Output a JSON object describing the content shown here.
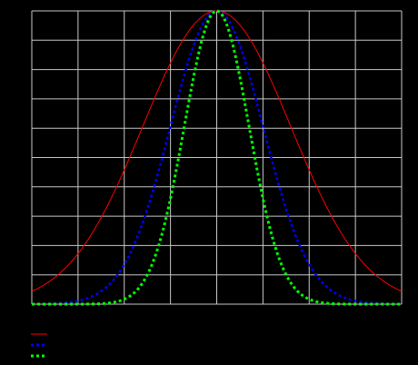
{
  "chart_data": {
    "type": "line",
    "title": "",
    "xlabel": "",
    "ylabel": "",
    "xlim": [
      -4,
      4
    ],
    "ylim": [
      0,
      1
    ],
    "grid": true,
    "legend": "bottom-left",
    "background": "#000000",
    "grid_color": "#c8c8c8",
    "series": [
      {
        "name": "",
        "color": "#ff0000",
        "style": "solid",
        "sigma": 1.6,
        "x": [
          -4,
          -3.5,
          -3,
          -2.5,
          -2,
          -1.5,
          -1,
          -0.5,
          0,
          0.5,
          1,
          1.5,
          2,
          2.5,
          3,
          3.5,
          4
        ],
        "y": [
          0.04,
          0.09,
          0.17,
          0.3,
          0.46,
          0.64,
          0.82,
          0.95,
          1.0,
          0.95,
          0.82,
          0.64,
          0.46,
          0.3,
          0.17,
          0.09,
          0.04
        ]
      },
      {
        "name": "",
        "color": "#0000ff",
        "style": "dotted",
        "sigma": 1.0,
        "x": [
          -4,
          -3.5,
          -3,
          -2.5,
          -2,
          -1.5,
          -1,
          -0.5,
          0,
          0.5,
          1,
          1.5,
          2,
          2.5,
          3,
          3.5,
          4
        ],
        "y": [
          0.0,
          0.0,
          0.01,
          0.04,
          0.14,
          0.32,
          0.61,
          0.88,
          1.0,
          0.88,
          0.61,
          0.32,
          0.14,
          0.04,
          0.01,
          0.0,
          0.0
        ]
      },
      {
        "name": "",
        "color": "#00ff00",
        "style": "dotted",
        "sigma": 0.7,
        "x": [
          -4,
          -3.5,
          -3,
          -2.5,
          -2,
          -1.5,
          -1,
          -0.5,
          0,
          0.5,
          1,
          1.5,
          2,
          2.5,
          3,
          3.5,
          4
        ],
        "y": [
          0.0,
          0.0,
          0.0,
          0.0,
          0.02,
          0.1,
          0.36,
          0.77,
          1.0,
          0.77,
          0.36,
          0.1,
          0.02,
          0.0,
          0.0,
          0.0,
          0.0
        ]
      }
    ]
  }
}
